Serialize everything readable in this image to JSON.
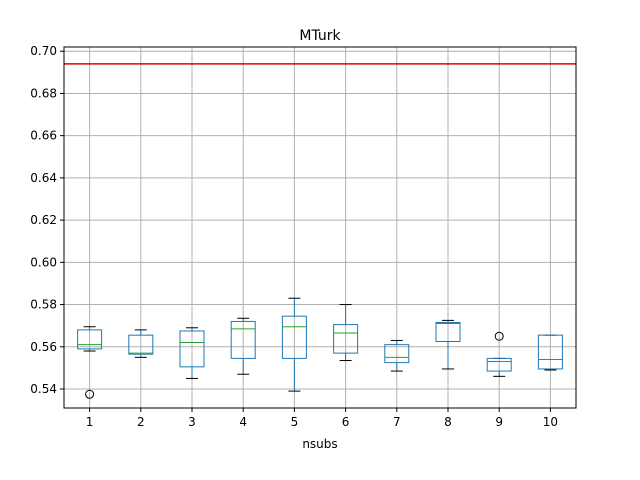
{
  "chart_data": {
    "type": "box",
    "title": "MTurk",
    "xlabel": "nsubs",
    "ylabel": "",
    "categories": [
      "1",
      "2",
      "3",
      "4",
      "5",
      "6",
      "7",
      "8",
      "9",
      "10"
    ],
    "ylim": [
      0.531,
      0.702
    ],
    "yticks": [
      0.54,
      0.56,
      0.58,
      0.6,
      0.62,
      0.64,
      0.66,
      0.68,
      0.7
    ],
    "ytick_labels": [
      "0.54",
      "0.56",
      "0.58",
      "0.60",
      "0.62",
      "0.64",
      "0.66",
      "0.68",
      "0.70"
    ],
    "grid": true,
    "reference_line": {
      "y": 0.694,
      "color": "#e00000"
    },
    "box_color": "#1f77b4",
    "median_color": "#2ca02c",
    "boxes": [
      {
        "label": "1",
        "whisker_low": 0.558,
        "q1": 0.559,
        "median": 0.561,
        "q3": 0.568,
        "whisker_high": 0.5695,
        "outliers": [
          0.5375
        ]
      },
      {
        "label": "2",
        "whisker_low": 0.555,
        "q1": 0.5565,
        "median": 0.557,
        "q3": 0.5655,
        "whisker_high": 0.568,
        "outliers": []
      },
      {
        "label": "3",
        "whisker_low": 0.545,
        "q1": 0.5505,
        "median": 0.562,
        "q3": 0.5675,
        "whisker_high": 0.569,
        "outliers": []
      },
      {
        "label": "4",
        "whisker_low": 0.547,
        "q1": 0.5545,
        "median": 0.5685,
        "q3": 0.572,
        "whisker_high": 0.5735,
        "outliers": []
      },
      {
        "label": "5",
        "whisker_low": 0.539,
        "q1": 0.5545,
        "median": 0.5695,
        "q3": 0.5745,
        "whisker_high": 0.583,
        "outliers": []
      },
      {
        "label": "6",
        "whisker_low": 0.5535,
        "q1": 0.557,
        "median": 0.5665,
        "q3": 0.5705,
        "whisker_high": 0.58,
        "outliers": []
      },
      {
        "label": "7",
        "whisker_low": 0.5485,
        "q1": 0.5525,
        "median": 0.555,
        "q3": 0.561,
        "whisker_high": 0.563,
        "outliers": []
      },
      {
        "label": "8",
        "whisker_low": 0.5495,
        "q1": 0.5625,
        "median": 0.571,
        "q3": 0.5715,
        "whisker_high": 0.5725,
        "outliers": []
      },
      {
        "label": "9",
        "whisker_low": 0.546,
        "q1": 0.5485,
        "median": 0.553,
        "q3": 0.5545,
        "whisker_high": 0.5545,
        "outliers": [
          0.565
        ]
      },
      {
        "label": "10",
        "whisker_low": 0.549,
        "q1": 0.5495,
        "median": 0.554,
        "q3": 0.5655,
        "whisker_high": 0.5655,
        "outliers": []
      }
    ]
  }
}
